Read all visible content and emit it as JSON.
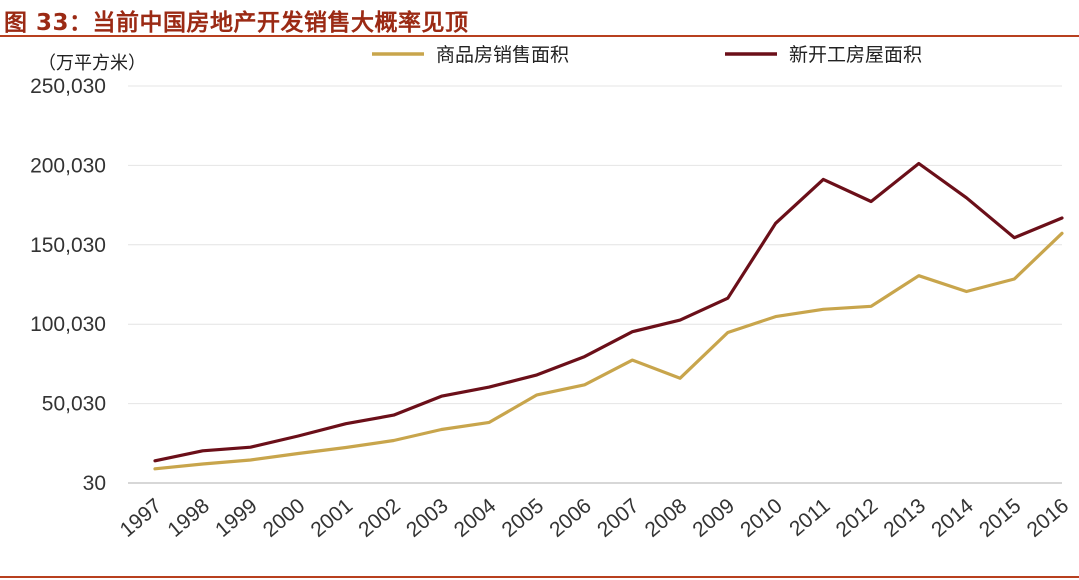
{
  "figure": {
    "title": "图 33：当前中国房地产开发销售大概率见顶"
  },
  "chart_data": {
    "type": "line",
    "title": "图 33：当前中国房地产开发销售大概率见顶",
    "ylabel": "（万平方米）",
    "xlabel": "",
    "categories": [
      "1997",
      "1998",
      "1999",
      "2000",
      "2001",
      "2002",
      "2003",
      "2004",
      "2005",
      "2006",
      "2007",
      "2008",
      "2009",
      "2010",
      "2011",
      "2012",
      "2013",
      "2014",
      "2015",
      "2016"
    ],
    "yticks": [
      "30",
      "50,030",
      "100,030",
      "150,030",
      "200,030",
      "250,030"
    ],
    "ylim": [
      30,
      250030
    ],
    "grid": true,
    "legend_position": "top",
    "series": [
      {
        "name": "商品房销售面积",
        "color": "#c8a54c",
        "values": [
          9000,
          12000,
          14500,
          18600,
          22400,
          26800,
          33700,
          38200,
          55500,
          61900,
          77400,
          66000,
          94800,
          104800,
          109400,
          111300,
          130600,
          120600,
          128500,
          157300
        ]
      },
      {
        "name": "新开工房屋面积",
        "color": "#6b0f19",
        "values": [
          14000,
          20300,
          22600,
          29600,
          37400,
          42800,
          54700,
          60400,
          68100,
          79600,
          95300,
          102600,
          116400,
          163600,
          191200,
          177300,
          201200,
          179600,
          154500,
          166900
        ]
      }
    ]
  }
}
